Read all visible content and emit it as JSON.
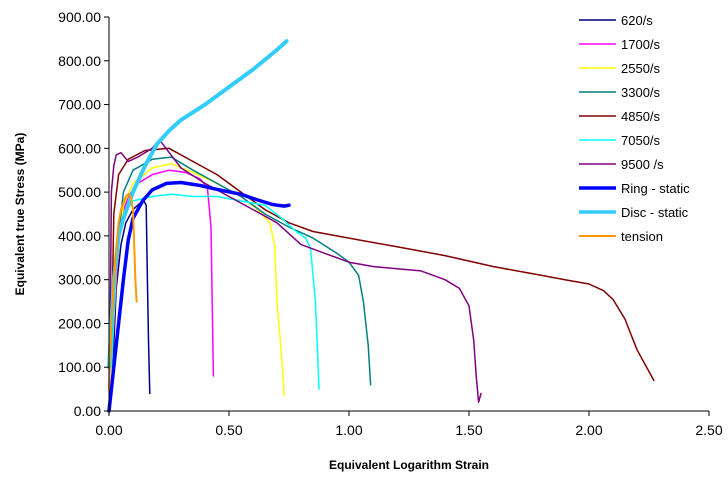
{
  "chart_data": {
    "type": "line",
    "title": "",
    "xlabel": "Equivalent Logarithm Strain",
    "ylabel": "Equivalent true Stress (MPa)",
    "xlim": [
      0,
      2.5
    ],
    "ylim": [
      0,
      900
    ],
    "x_ticks": [
      "0.00",
      "0.50",
      "1.00",
      "1.50",
      "2.00",
      "2.50"
    ],
    "y_ticks": [
      "0.00",
      "100.00",
      "200.00",
      "300.00",
      "400.00",
      "500.00",
      "600.00",
      "700.00",
      "800.00",
      "900.00"
    ],
    "grid": false,
    "legend_position": "right",
    "series": [
      {
        "name": "620/s",
        "color": "#000080",
        "width": 1.5,
        "points": [
          [
            0.01,
            50
          ],
          [
            0.02,
            150
          ],
          [
            0.03,
            280
          ],
          [
            0.05,
            380
          ],
          [
            0.07,
            430
          ],
          [
            0.1,
            460
          ],
          [
            0.13,
            475
          ],
          [
            0.145,
            480
          ],
          [
            0.155,
            470
          ],
          [
            0.16,
            300
          ],
          [
            0.165,
            150
          ],
          [
            0.17,
            40
          ]
        ]
      },
      {
        "name": "1700/s",
        "color": "#FF00FF",
        "width": 1.5,
        "points": [
          [
            0.01,
            100
          ],
          [
            0.03,
            300
          ],
          [
            0.05,
            440
          ],
          [
            0.08,
            490
          ],
          [
            0.12,
            520
          ],
          [
            0.18,
            540
          ],
          [
            0.25,
            550
          ],
          [
            0.32,
            545
          ],
          [
            0.38,
            530
          ],
          [
            0.41,
            510
          ],
          [
            0.425,
            420
          ],
          [
            0.43,
            250
          ],
          [
            0.435,
            80
          ]
        ]
      },
      {
        "name": "2550/s",
        "color": "#FFFF00",
        "width": 1.5,
        "points": [
          [
            0.01,
            100
          ],
          [
            0.03,
            320
          ],
          [
            0.06,
            470
          ],
          [
            0.1,
            520
          ],
          [
            0.18,
            555
          ],
          [
            0.26,
            565
          ],
          [
            0.35,
            545
          ],
          [
            0.45,
            520
          ],
          [
            0.55,
            490
          ],
          [
            0.62,
            460
          ],
          [
            0.67,
            430
          ],
          [
            0.69,
            380
          ],
          [
            0.7,
            250
          ],
          [
            0.72,
            120
          ],
          [
            0.73,
            35
          ]
        ]
      },
      {
        "name": "3300/s",
        "color": "#008080",
        "width": 1.5,
        "points": [
          [
            0.01,
            100
          ],
          [
            0.03,
            350
          ],
          [
            0.06,
            500
          ],
          [
            0.1,
            550
          ],
          [
            0.18,
            575
          ],
          [
            0.26,
            580
          ],
          [
            0.35,
            550
          ],
          [
            0.45,
            520
          ],
          [
            0.55,
            490
          ],
          [
            0.65,
            450
          ],
          [
            0.75,
            420
          ],
          [
            0.85,
            395
          ],
          [
            0.95,
            360
          ],
          [
            1.0,
            340
          ],
          [
            1.04,
            310
          ],
          [
            1.06,
            250
          ],
          [
            1.08,
            150
          ],
          [
            1.09,
            60
          ]
        ]
      },
      {
        "name": "4850/s",
        "color": "#800000",
        "width": 1.5,
        "points": [
          [
            0.01,
            150
          ],
          [
            0.02,
            450
          ],
          [
            0.04,
            540
          ],
          [
            0.08,
            575
          ],
          [
            0.15,
            595
          ],
          [
            0.25,
            600
          ],
          [
            0.35,
            570
          ],
          [
            0.45,
            540
          ],
          [
            0.55,
            500
          ],
          [
            0.65,
            460
          ],
          [
            0.75,
            430
          ],
          [
            0.85,
            410
          ],
          [
            1.0,
            395
          ],
          [
            1.2,
            375
          ],
          [
            1.4,
            355
          ],
          [
            1.6,
            330
          ],
          [
            1.8,
            310
          ],
          [
            1.9,
            300
          ],
          [
            2.0,
            290
          ],
          [
            2.06,
            275
          ],
          [
            2.1,
            255
          ],
          [
            2.15,
            210
          ],
          [
            2.2,
            140
          ],
          [
            2.27,
            70
          ]
        ]
      },
      {
        "name": "7050/s",
        "color": "#00FFFF",
        "width": 1.5,
        "points": [
          [
            0.01,
            100
          ],
          [
            0.03,
            350
          ],
          [
            0.06,
            450
          ],
          [
            0.1,
            480
          ],
          [
            0.18,
            490
          ],
          [
            0.26,
            495
          ],
          [
            0.35,
            490
          ],
          [
            0.45,
            490
          ],
          [
            0.55,
            480
          ],
          [
            0.65,
            470
          ],
          [
            0.72,
            440
          ],
          [
            0.78,
            410
          ],
          [
            0.82,
            395
          ],
          [
            0.84,
            370
          ],
          [
            0.86,
            250
          ],
          [
            0.87,
            120
          ],
          [
            0.875,
            50
          ]
        ]
      },
      {
        "name": "9500 /s",
        "color": "#800080",
        "width": 1.5,
        "points": [
          [
            0.005,
            200
          ],
          [
            0.01,
            500
          ],
          [
            0.02,
            560
          ],
          [
            0.03,
            585
          ],
          [
            0.05,
            590
          ],
          [
            0.08,
            570
          ],
          [
            0.12,
            580
          ],
          [
            0.18,
            600
          ],
          [
            0.21,
            620
          ],
          [
            0.23,
            605
          ],
          [
            0.3,
            555
          ],
          [
            0.4,
            520
          ],
          [
            0.5,
            490
          ],
          [
            0.6,
            460
          ],
          [
            0.7,
            430
          ],
          [
            0.8,
            380
          ],
          [
            0.9,
            360
          ],
          [
            1.0,
            340
          ],
          [
            1.1,
            330
          ],
          [
            1.2,
            325
          ],
          [
            1.3,
            320
          ],
          [
            1.4,
            300
          ],
          [
            1.46,
            280
          ],
          [
            1.5,
            240
          ],
          [
            1.52,
            160
          ],
          [
            1.53,
            80
          ],
          [
            1.54,
            20
          ],
          [
            1.55,
            40
          ]
        ]
      },
      {
        "name": "Ring - static",
        "color": "#0000FF",
        "width": 3.5,
        "points": [
          [
            0.0,
            0
          ],
          [
            0.02,
            100
          ],
          [
            0.04,
            200
          ],
          [
            0.06,
            300
          ],
          [
            0.08,
            390
          ],
          [
            0.1,
            440
          ],
          [
            0.14,
            480
          ],
          [
            0.18,
            505
          ],
          [
            0.24,
            520
          ],
          [
            0.3,
            522
          ],
          [
            0.38,
            515
          ],
          [
            0.46,
            505
          ],
          [
            0.55,
            495
          ],
          [
            0.62,
            482
          ],
          [
            0.68,
            472
          ],
          [
            0.7,
            470
          ],
          [
            0.73,
            468
          ],
          [
            0.75,
            470
          ]
        ]
      },
      {
        "name": "Disc - static",
        "color": "#33CCFF",
        "width": 4,
        "points": [
          [
            0.0,
            100
          ],
          [
            0.02,
            300
          ],
          [
            0.04,
            400
          ],
          [
            0.06,
            440
          ],
          [
            0.1,
            500
          ],
          [
            0.15,
            560
          ],
          [
            0.2,
            610
          ],
          [
            0.25,
            640
          ],
          [
            0.3,
            665
          ],
          [
            0.4,
            700
          ],
          [
            0.5,
            740
          ],
          [
            0.6,
            780
          ],
          [
            0.7,
            825
          ],
          [
            0.74,
            845
          ]
        ]
      },
      {
        "name": "tension",
        "color": "#FF9900",
        "width": 2,
        "points": [
          [
            0.0,
            50
          ],
          [
            0.01,
            200
          ],
          [
            0.02,
            300
          ],
          [
            0.03,
            370
          ],
          [
            0.04,
            430
          ],
          [
            0.05,
            460
          ],
          [
            0.06,
            475
          ],
          [
            0.07,
            490
          ],
          [
            0.08,
            495
          ],
          [
            0.09,
            490
          ],
          [
            0.1,
            460
          ],
          [
            0.105,
            380
          ],
          [
            0.11,
            300
          ],
          [
            0.115,
            250
          ]
        ]
      }
    ]
  }
}
